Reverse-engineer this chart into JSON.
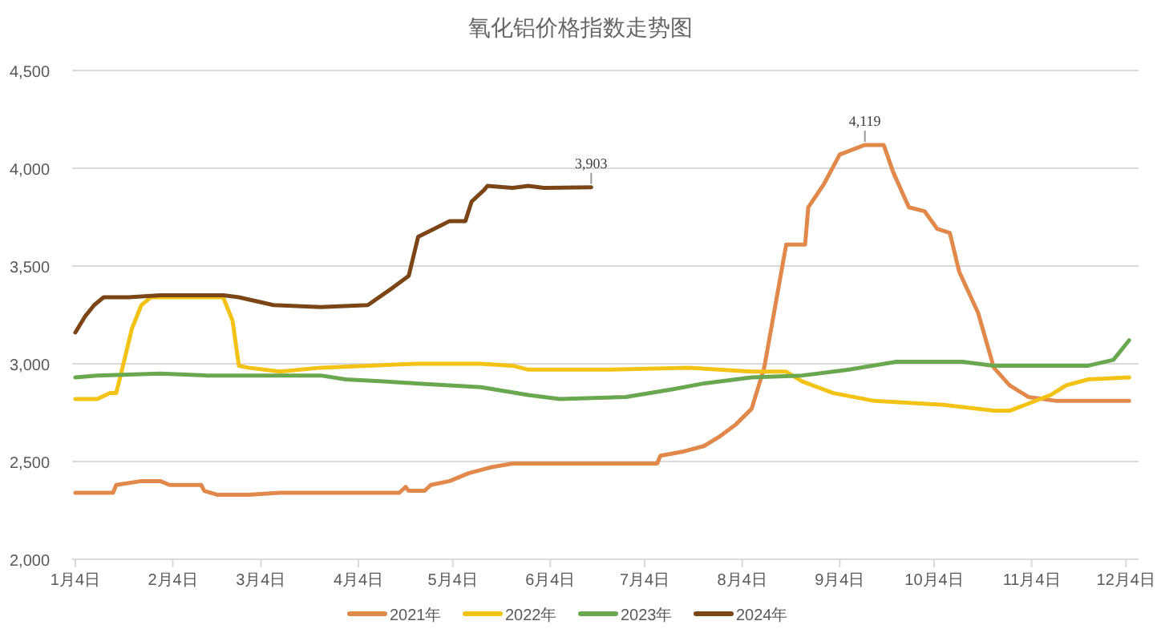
{
  "chart_data": {
    "type": "line",
    "title": "氧化铝价格指数走势图",
    "xlim": [
      "--01-03",
      "--12-08"
    ],
    "xticks": [
      {
        "value": "--01-04",
        "label": "1月4日"
      },
      {
        "value": "--02-04",
        "label": "2月4日"
      },
      {
        "value": "--03-04",
        "label": "3月4日"
      },
      {
        "value": "--04-04",
        "label": "4月4日"
      },
      {
        "value": "--05-04",
        "label": "5月4日"
      },
      {
        "value": "--06-04",
        "label": "6月4日"
      },
      {
        "value": "--07-04",
        "label": "7月4日"
      },
      {
        "value": "--08-04",
        "label": "8月4日"
      },
      {
        "value": "--09-04",
        "label": "9月4日"
      },
      {
        "value": "--10-04",
        "label": "10月4日"
      },
      {
        "value": "--11-04",
        "label": "11月4日"
      },
      {
        "value": "--12-04",
        "label": "12月4日"
      }
    ],
    "ylim": [
      2000,
      4500
    ],
    "yticks": [
      {
        "value": 2000,
        "label": "2,000"
      },
      {
        "value": 2500,
        "label": "2,500"
      },
      {
        "value": 3000,
        "label": "3,000"
      },
      {
        "value": 3500,
        "label": "3,500"
      },
      {
        "value": 4000,
        "label": "4,000"
      },
      {
        "value": 4500,
        "label": "4,500"
      }
    ],
    "grid": "y",
    "legend": "bottom",
    "series": [
      {
        "name": "2021年",
        "color": "#e0894a",
        "x": [
          "--01-04",
          "--01-16",
          "--01-17",
          "--01-25",
          "--01-31",
          "--02-03",
          "--02-13",
          "--02-14",
          "--02-18",
          "--02-28",
          "--03-10",
          "--04-17",
          "--04-19",
          "--04-20",
          "--04-25",
          "--04-27",
          "--05-03",
          "--05-09",
          "--05-16",
          "--05-23",
          "--07-08",
          "--07-09",
          "--07-16",
          "--07-23",
          "--07-28",
          "--08-02",
          "--08-07",
          "--08-11",
          "--08-15",
          "--08-18",
          "--08-24",
          "--08-25",
          "--08-30",
          "--09-04",
          "--09-12",
          "--09-18",
          "--09-21",
          "--09-26",
          "--10-01",
          "--10-05",
          "--10-09",
          "--10-12",
          "--10-18",
          "--10-23",
          "--10-28",
          "--11-03",
          "--11-12",
          "--12-05"
        ],
        "values": [
          2340,
          2340,
          2380,
          2400,
          2400,
          2380,
          2380,
          2350,
          2330,
          2330,
          2340,
          2340,
          2370,
          2350,
          2350,
          2380,
          2400,
          2440,
          2470,
          2490,
          2490,
          2530,
          2550,
          2580,
          2630,
          2690,
          2770,
          2980,
          3340,
          3610,
          3610,
          3800,
          3920,
          4070,
          4119,
          4119,
          3980,
          3800,
          3780,
          3690,
          3670,
          3470,
          3260,
          2980,
          2890,
          2830,
          2810,
          2810
        ],
        "value_labels": [
          null,
          null,
          null,
          null,
          null,
          null,
          null,
          null,
          null,
          null,
          null,
          null,
          null,
          null,
          null,
          null,
          null,
          null,
          null,
          null,
          null,
          null,
          null,
          null,
          null,
          null,
          null,
          null,
          null,
          null,
          null,
          null,
          null,
          null,
          "4,119",
          null,
          null,
          null,
          null,
          null,
          null,
          null,
          null,
          null,
          null,
          null,
          null,
          null
        ]
      },
      {
        "name": "2022年",
        "color": "#f2c314",
        "x": [
          "--01-04",
          "--01-11",
          "--01-15",
          "--01-17",
          "--01-19",
          "--01-22",
          "--01-25",
          "--01-28",
          "--02-20",
          "--02-23",
          "--02-25",
          "--02-28",
          "--03-10",
          "--03-23",
          "--04-07",
          "--04-22",
          "--05-13",
          "--05-23",
          "--05-28",
          "--06-23",
          "--07-18",
          "--08-07",
          "--08-18",
          "--08-23",
          "--09-02",
          "--09-15",
          "--10-07",
          "--10-23",
          "--10-28",
          "--11-02",
          "--11-10",
          "--11-15",
          "--11-22",
          "--12-05"
        ],
        "values": [
          2820,
          2820,
          2850,
          2850,
          2980,
          3180,
          3300,
          3340,
          3340,
          3220,
          2990,
          2980,
          2960,
          2980,
          2990,
          3000,
          3000,
          2990,
          2970,
          2970,
          2980,
          2960,
          2960,
          2910,
          2850,
          2810,
          2790,
          2760,
          2760,
          2790,
          2840,
          2890,
          2920,
          2930
        ]
      },
      {
        "name": "2023年",
        "color": "#6aa84f",
        "x": [
          "--01-04",
          "--01-11",
          "--01-31",
          "--02-15",
          "--03-02",
          "--03-23",
          "--03-31",
          "--04-12",
          "--04-22",
          "--05-13",
          "--05-28",
          "--06-07",
          "--06-28",
          "--07-13",
          "--07-23",
          "--08-07",
          "--08-23",
          "--09-07",
          "--09-22",
          "--10-13",
          "--10-23",
          "--11-22",
          "--11-30",
          "--12-05"
        ],
        "values": [
          2930,
          2940,
          2950,
          2940,
          2940,
          2940,
          2920,
          2910,
          2900,
          2880,
          2840,
          2820,
          2830,
          2870,
          2900,
          2930,
          2940,
          2970,
          3010,
          3010,
          2990,
          2990,
          3020,
          3120
        ]
      },
      {
        "name": "2024年",
        "color": "#7b4516",
        "x": [
          "--01-04",
          "--01-07",
          "--01-10",
          "--01-13",
          "--01-21",
          "--01-31",
          "--02-20",
          "--02-25",
          "--03-08",
          "--03-23",
          "--04-07",
          "--04-15",
          "--04-20",
          "--04-23",
          "--04-28",
          "--05-03",
          "--05-08",
          "--05-10",
          "--05-14",
          "--05-15",
          "--05-23",
          "--05-28",
          "--06-02",
          "--06-17"
        ],
        "values": [
          3160,
          3240,
          3300,
          3340,
          3340,
          3350,
          3350,
          3340,
          3300,
          3290,
          3300,
          3390,
          3450,
          3650,
          3690,
          3730,
          3730,
          3830,
          3890,
          3910,
          3900,
          3910,
          3900,
          3903
        ],
        "value_labels": [
          null,
          null,
          null,
          null,
          null,
          null,
          null,
          null,
          null,
          null,
          null,
          null,
          null,
          null,
          null,
          null,
          null,
          null,
          null,
          null,
          null,
          null,
          null,
          "3,903"
        ]
      }
    ]
  }
}
